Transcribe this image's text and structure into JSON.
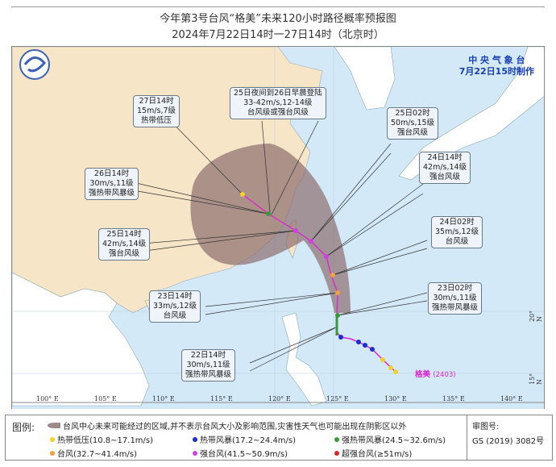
{
  "header": {
    "title": "今年第3号台风“格美”未来120小时路径概率预报图",
    "subtitle": "2024年7月22日14时一27日14时（北京时）"
  },
  "agency": {
    "name": "中 央 气 象 台",
    "issued": "7月22日15时制作"
  },
  "typhoon": {
    "name": "格美",
    "code": "(2403)"
  },
  "colors": {
    "sea": "#d3e9f8",
    "china_land": "#f6e5c6",
    "other_land": "#ffffff",
    "cone": "#8c6e6e",
    "track": "#e020d0"
  },
  "axis": {
    "lon_labels": [
      "100° E",
      "105° E",
      "110° E",
      "115° E",
      "120° E",
      "125° E",
      "130° E",
      "135° E",
      "140° E"
    ],
    "lat_labels": [
      "15° N",
      "20° N"
    ]
  },
  "forecasts": [
    {
      "time": "22日14时",
      "speed": "30m/s,11级",
      "level": "强热带风暴级"
    },
    {
      "time": "23日02时",
      "speed": "30m/s,11级",
      "level": "强热带风暴级"
    },
    {
      "time": "23日14时",
      "speed": "33m/s,12级",
      "level": "台风级"
    },
    {
      "time": "24日02时",
      "speed": "35m/s,12级",
      "level": "台风级"
    },
    {
      "time": "24日14时",
      "speed": "42m/s,14级",
      "level": "强台风级"
    },
    {
      "time": "25日02时",
      "speed": "50m/s,15级",
      "level": "强台风级"
    },
    {
      "time": "25日14时",
      "speed": "42m/s,14级",
      "level": "强台风级"
    },
    {
      "time": "25日夜间到26日早晨登陆",
      "speed": "33-42m/s,12-14级",
      "level": "台风级或强台风级"
    },
    {
      "time": "26日14时",
      "speed": "30m/s,11级",
      "level": "强热带风暴级"
    },
    {
      "time": "27日14时",
      "speed": "15m/s,7级",
      "level": "热带低压"
    }
  ],
  "legend": {
    "title": "图例:",
    "cone": "台风中心未来可能经过的区域,并不表示台风大小及影响范围,灾害性天气也可能出现在阴影区以外",
    "items": [
      {
        "label": "热带低压(10.8~17.1m/s)",
        "color": "#f2d22a"
      },
      {
        "label": "热带风暴(17.2~24.4m/s)",
        "color": "#1a2fd0"
      },
      {
        "label": "强热带风暴(24.5~32.6m/s)",
        "color": "#3a9a3a"
      },
      {
        "label": "台风(32.7~41.4m/s)",
        "color": "#f0a040"
      },
      {
        "label": "强台风(41.5~50.9m/s)",
        "color": "#d040e0"
      },
      {
        "label": "超强台风(≥51m/s)",
        "color": "#e02020"
      }
    ],
    "review_label": "审图号:",
    "review_no": "GS (2019) 3082号"
  }
}
